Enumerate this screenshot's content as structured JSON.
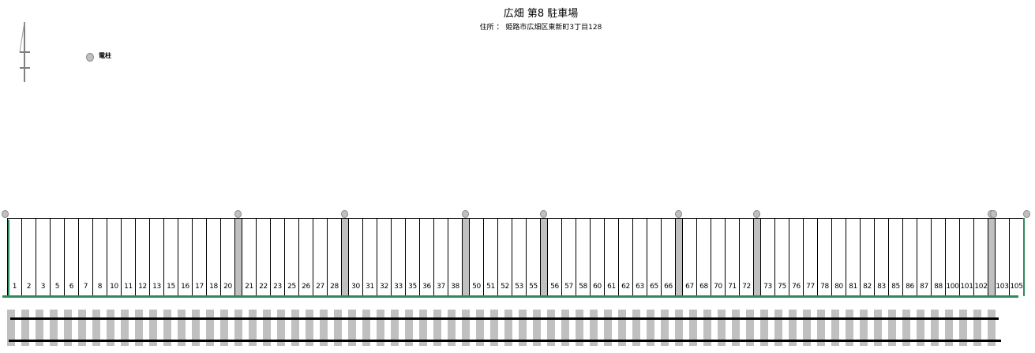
{
  "header": {
    "title": "広畑 第8 駐車場",
    "address": "住所 ： 姫路市広畑区東新町3丁目128"
  },
  "legend": {
    "pole_label": "電柱",
    "pole_color": "#c0c0c0"
  },
  "compass": {
    "icon": "north-arrow-icon"
  },
  "parking": {
    "groups": [
      [
        "1",
        "2",
        "3",
        "5",
        "6",
        "7",
        "8",
        "10",
        "11",
        "12",
        "13",
        "15",
        "16",
        "17",
        "18",
        "20"
      ],
      [
        "21",
        "22",
        "23",
        "25",
        "26",
        "27",
        "28"
      ],
      [
        "30",
        "31",
        "32",
        "33",
        "35",
        "36",
        "37",
        "38"
      ],
      [
        "50",
        "51",
        "52",
        "53",
        "55"
      ],
      [
        "56",
        "57",
        "58",
        "60",
        "61",
        "62",
        "63",
        "65",
        "66"
      ],
      [
        "67",
        "68",
        "70",
        "71",
        "72"
      ],
      [
        "73",
        "75",
        "76",
        "77",
        "78",
        "80",
        "81",
        "82",
        "83",
        "85",
        "86",
        "87",
        "88",
        "100",
        "101",
        "102"
      ],
      [
        "103",
        "105"
      ]
    ],
    "boundary_color": "#2e8b57",
    "separator_color": "#c0c0c0"
  },
  "railway": {
    "icon": "railway-track",
    "tie_color": "#c0c0c0"
  }
}
